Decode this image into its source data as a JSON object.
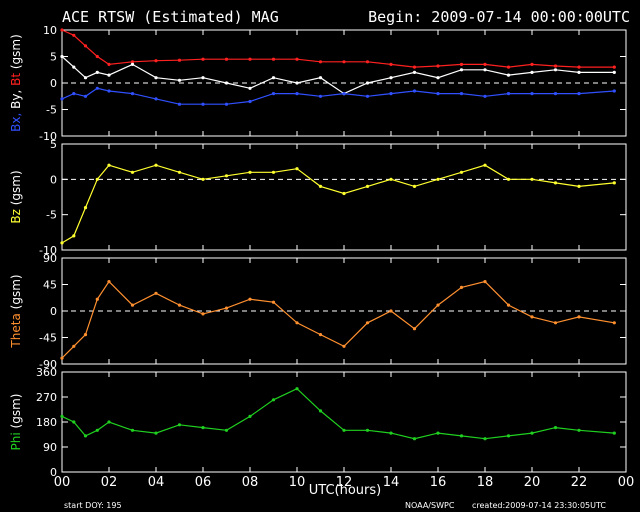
{
  "header": {
    "title": "ACE RTSW (Estimated) MAG",
    "begin": "Begin: 2009-07-14 00:00:00UTC"
  },
  "footer": {
    "start_doy": "start DOY:  195",
    "x_axis_label": "UTC(hours)",
    "source": "NOAA/SWPC",
    "created": "created:2009-07-14 23:30:05UTC"
  },
  "colors": {
    "background": "#000000",
    "frame": "#ffffff",
    "bt": "#ff2020",
    "bx": "#3050ff",
    "by": "#ffffff",
    "bz": "#ffff30",
    "theta": "#ff9030",
    "phi": "#20d020"
  },
  "chart_data": [
    {
      "type": "scatter",
      "ylabel_parts": [
        {
          "text": "Bx,",
          "color": "#3050ff"
        },
        {
          "text": " By,",
          "color": "#ffffff"
        },
        {
          "text": " Bt",
          "color": "#ff2020"
        },
        {
          "text": "  (gsm)",
          "color": "#ffffff"
        }
      ],
      "ylim": [
        -10,
        10
      ],
      "yticks": [
        -10,
        -5,
        0,
        5,
        10
      ],
      "zero_line": true,
      "x": [
        0,
        0.5,
        1,
        1.5,
        2,
        3,
        4,
        5,
        6,
        7,
        8,
        9,
        10,
        11,
        12,
        13,
        14,
        15,
        16,
        17,
        18,
        19,
        20,
        21,
        22,
        23.5
      ],
      "series": [
        {
          "name": "Bt",
          "color": "#ff2020",
          "values": [
            10,
            9,
            7,
            5,
            3.5,
            4,
            4.2,
            4.3,
            4.5,
            4.5,
            4.5,
            4.5,
            4.5,
            4,
            4,
            4,
            3.5,
            3,
            3.2,
            3.5,
            3.5,
            3,
            3.5,
            3.2,
            3,
            3
          ]
        },
        {
          "name": "By",
          "color": "#ffffff",
          "values": [
            5,
            3,
            1,
            2,
            1.5,
            3.5,
            1,
            0.5,
            1,
            0,
            -1,
            1,
            0,
            1,
            -2,
            0,
            1,
            2,
            1,
            2.5,
            2.5,
            1.5,
            2,
            2.5,
            2,
            2
          ]
        },
        {
          "name": "Bx",
          "color": "#3050ff",
          "values": [
            -3,
            -2,
            -2.5,
            -1,
            -1.5,
            -2,
            -3,
            -4,
            -4,
            -4,
            -3.5,
            -2,
            -2,
            -2.5,
            -2,
            -2.5,
            -2,
            -1.5,
            -2,
            -2,
            -2.5,
            -2,
            -2,
            -2,
            -2,
            -1.5
          ]
        }
      ]
    },
    {
      "type": "scatter",
      "ylabel_parts": [
        {
          "text": "Bz",
          "color": "#ffff30"
        },
        {
          "text": "  (gsm)",
          "color": "#ffffff"
        }
      ],
      "ylim": [
        -10,
        5
      ],
      "yticks": [
        -10,
        -5,
        0,
        5
      ],
      "zero_line": true,
      "x": [
        0,
        0.5,
        1,
        1.5,
        2,
        3,
        4,
        5,
        6,
        7,
        8,
        9,
        10,
        11,
        12,
        13,
        14,
        15,
        16,
        17,
        18,
        19,
        20,
        21,
        22,
        23.5
      ],
      "series": [
        {
          "name": "Bz",
          "color": "#ffff30",
          "values": [
            -9,
            -8,
            -4,
            0,
            2,
            1,
            2,
            1,
            0,
            0.5,
            1,
            1,
            1.5,
            -1,
            -2,
            -1,
            0,
            -1,
            0,
            1,
            2,
            0,
            0,
            -0.5,
            -1,
            -0.5
          ]
        }
      ]
    },
    {
      "type": "scatter",
      "ylabel_parts": [
        {
          "text": "Theta",
          "color": "#ff9030"
        },
        {
          "text": "  (gsm)",
          "color": "#ffffff"
        }
      ],
      "ylim": [
        -90,
        90
      ],
      "yticks": [
        -90,
        -45,
        0,
        45,
        90
      ],
      "zero_line": true,
      "x": [
        0,
        0.5,
        1,
        1.5,
        2,
        3,
        4,
        5,
        6,
        7,
        8,
        9,
        10,
        11,
        12,
        13,
        14,
        15,
        16,
        17,
        18,
        19,
        20,
        21,
        22,
        23.5
      ],
      "series": [
        {
          "name": "Theta",
          "color": "#ff9030",
          "values": [
            -80,
            -60,
            -40,
            20,
            50,
            10,
            30,
            10,
            -5,
            5,
            20,
            15,
            -20,
            -40,
            -60,
            -20,
            0,
            -30,
            10,
            40,
            50,
            10,
            -10,
            -20,
            -10,
            -20
          ]
        }
      ]
    },
    {
      "type": "scatter",
      "ylabel_parts": [
        {
          "text": "Phi",
          "color": "#20d020"
        },
        {
          "text": "  (gsm)",
          "color": "#ffffff"
        }
      ],
      "ylim": [
        0,
        360
      ],
      "yticks": [
        0,
        90,
        180,
        270,
        360
      ],
      "zero_line": false,
      "x": [
        0,
        0.5,
        1,
        1.5,
        2,
        3,
        4,
        5,
        6,
        7,
        8,
        9,
        10,
        11,
        12,
        13,
        14,
        15,
        16,
        17,
        18,
        19,
        20,
        21,
        22,
        23.5
      ],
      "series": [
        {
          "name": "Phi",
          "color": "#20d020",
          "values": [
            200,
            180,
            130,
            150,
            180,
            150,
            140,
            170,
            160,
            150,
            200,
            260,
            300,
            220,
            150,
            150,
            140,
            120,
            140,
            130,
            120,
            130,
            140,
            160,
            150,
            140
          ]
        }
      ]
    }
  ],
  "x_axis": {
    "range": [
      0,
      24
    ],
    "tick_labels": [
      "00",
      "02",
      "04",
      "06",
      "08",
      "10",
      "12",
      "14",
      "16",
      "18",
      "20",
      "22",
      "00"
    ]
  }
}
